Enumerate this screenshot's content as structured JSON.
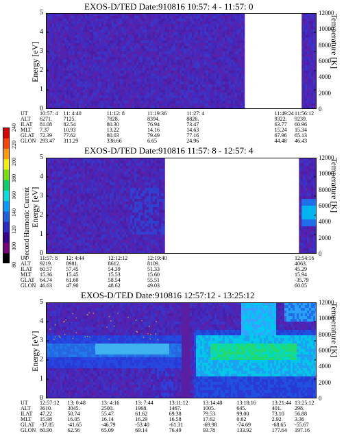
{
  "colorbar": {
    "label": "Second Harmonic Current",
    "ticks": [
      "80",
      "100",
      "120",
      "140",
      "160",
      "180",
      "200",
      "220",
      "240"
    ],
    "colors": [
      "#000000",
      "#7a0080",
      "#3a0090",
      "#2a2ac8",
      "#1d62e6",
      "#00a0ff",
      "#00e0e0",
      "#00d46a",
      "#7ae000",
      "#f0f000",
      "#ff9a00",
      "#ff4400",
      "#e00000"
    ]
  },
  "panels": [
    {
      "title": "EXOS-D/TED   Date:910816  10:57: 4 - 11:57: 0",
      "ylabel": "Energy [eV]",
      "rlabel": "Temperature [K]",
      "yticks": [
        "0",
        "1",
        "2",
        "3",
        "4",
        "5"
      ],
      "rticks": [
        "0",
        "2000",
        "4000",
        "6000",
        "8000",
        "10000",
        "12000"
      ],
      "gaps": [
        [
          0.735,
          0.945
        ]
      ],
      "style": "purple",
      "row_labels": [
        "UT",
        "ALT",
        "ILAT",
        "MLT",
        "GLAT",
        "GLON"
      ],
      "columns": [
        {
          "x": 0.0,
          "vals": [
            "10:57: 4",
            "6271.",
            "81.08",
            "7.37",
            "72.39",
            "293.47"
          ]
        },
        {
          "x": 0.09,
          "vals": [
            "11: 4:40",
            "7125.",
            "82.54",
            "10.93",
            "77.62",
            "311.29"
          ]
        },
        {
          "x": 0.25,
          "vals": [
            "11:12: 8",
            "7828.",
            "80.30",
            "13.22",
            "80.03",
            "338.66"
          ]
        },
        {
          "x": 0.4,
          "vals": [
            "11:19:36",
            "8394.",
            "76.94",
            "14.16",
            "79.49",
            "6.65"
          ]
        },
        {
          "x": 0.545,
          "vals": [
            "11:27: 4",
            "8826.",
            "73.47",
            "14.63",
            "77.16",
            "24.96"
          ]
        },
        {
          "x": 0.87,
          "vals": [
            "11:49:24",
            "9322.",
            "63.77",
            "15.24",
            "67.96",
            "44.48"
          ]
        },
        {
          "x": 0.995,
          "vals": [
            "11:56:12",
            "9239.",
            "60.96",
            "15.34",
            "65.13",
            "46.43"
          ]
        }
      ]
    },
    {
      "title": "EXOS-D/TED   Date:910816  11:57: 8 - 12:57: 4",
      "ylabel": "Energy [eV]",
      "rlabel": "Temperature [K]",
      "yticks": [
        "0",
        "1",
        "2",
        "3",
        "4",
        "5"
      ],
      "rticks": [
        "0",
        "2000",
        "4000",
        "6000",
        "8000",
        "10000",
        "12000"
      ],
      "gaps": [
        [
          0.44,
          0.935
        ]
      ],
      "style": "purple2",
      "row_labels": [
        "UT",
        "ALT",
        "ILAT",
        "MLT",
        "GLAT",
        "GLON"
      ],
      "columns": [
        {
          "x": 0.0,
          "vals": [
            "11:57: 8",
            "9219.",
            "60.57",
            "15.36",
            "64.74",
            "46.63"
          ]
        },
        {
          "x": 0.1,
          "vals": [
            "12: 4:44",
            "8981.",
            "57.45",
            "15.45",
            "61.60",
            "47.90"
          ]
        },
        {
          "x": 0.255,
          "vals": [
            "12:12:12",
            "8612.",
            "54.39",
            "15.53",
            "58.54",
            "48.62"
          ]
        },
        {
          "x": 0.4,
          "vals": [
            "12:19:40",
            "8109.",
            "51.33",
            "15.60",
            "55.51",
            "49.03"
          ]
        },
        {
          "x": 0.99,
          "vals": [
            "12:54:16",
            "4063.",
            "45.29",
            "15.94",
            "-35.79",
            "60.05"
          ]
        }
      ]
    },
    {
      "title": "EXOS-D/TED   Date:910816  12:57:12 - 13:25:12",
      "ylabel": "Energy [eV]",
      "rlabel": "Temperature [K]",
      "yticks": [
        "0",
        "1",
        "2",
        "3",
        "4",
        "5"
      ],
      "rticks": [
        "0",
        "2000",
        "4000",
        "6000",
        "8000",
        "10000",
        "12000"
      ],
      "gaps": [],
      "style": "bright",
      "row_labels": [
        "UT",
        "ALT",
        "ILAT",
        "MLT",
        "GLAT",
        "GLON"
      ],
      "columns": [
        {
          "x": 0.0,
          "vals": [
            "12:57:12",
            "3610.",
            "47.22",
            "15.98",
            "-37.85",
            "60.90"
          ]
        },
        {
          "x": 0.105,
          "vals": [
            "13: 0:48",
            "3045.",
            "50.74",
            "16.05",
            "-41.65",
            "62.56"
          ]
        },
        {
          "x": 0.23,
          "vals": [
            "13: 4:16",
            "2500.",
            "55.47",
            "16.14",
            "-46.79",
            "65.09"
          ]
        },
        {
          "x": 0.355,
          "vals": [
            "13: 7:44",
            "1968.",
            "61.62",
            "16.29",
            "-53.40",
            "69.14"
          ]
        },
        {
          "x": 0.48,
          "vals": [
            "13:11:12",
            "1467.",
            "69.38",
            "16.58",
            "-61.31",
            "76.49"
          ]
        },
        {
          "x": 0.605,
          "vals": [
            "13:14:48",
            "1005.",
            "79.53",
            "17.62",
            "-69.98",
            "93.78"
          ]
        },
        {
          "x": 0.73,
          "vals": [
            "13:18:16",
            "645.",
            "99.00",
            "0.62",
            "-74.69",
            "133.92"
          ]
        },
        {
          "x": 0.86,
          "vals": [
            "13:21:44",
            "401.",
            "73.10",
            "2.92",
            "-68.65",
            "177.64"
          ]
        },
        {
          "x": 0.99,
          "vals": [
            "13:25:12",
            "298.",
            "56.88",
            "3.36",
            "-55.67",
            "197.16"
          ]
        }
      ]
    }
  ],
  "chart_data": [
    {
      "type": "heatmap",
      "title": "EXOS-D/TED   Date:910816  10:57: 4 - 11:57: 0",
      "ylabel": "Energy [eV]",
      "y2label": "Temperature [K]",
      "ylim": [
        0,
        5
      ],
      "y2lim": [
        0,
        12000
      ]
    },
    {
      "type": "heatmap",
      "title": "EXOS-D/TED   Date:910816  11:57: 8 - 12:57: 4",
      "ylabel": "Energy [eV]",
      "y2label": "Temperature [K]",
      "ylim": [
        0,
        5
      ],
      "y2lim": [
        0,
        12000
      ]
    },
    {
      "type": "heatmap",
      "title": "EXOS-D/TED   Date:910816  12:57:12 - 13:25:12",
      "ylabel": "Energy [eV]",
      "y2label": "Temperature [K]",
      "ylim": [
        0,
        5
      ],
      "y2lim": [
        0,
        12000
      ]
    }
  ]
}
